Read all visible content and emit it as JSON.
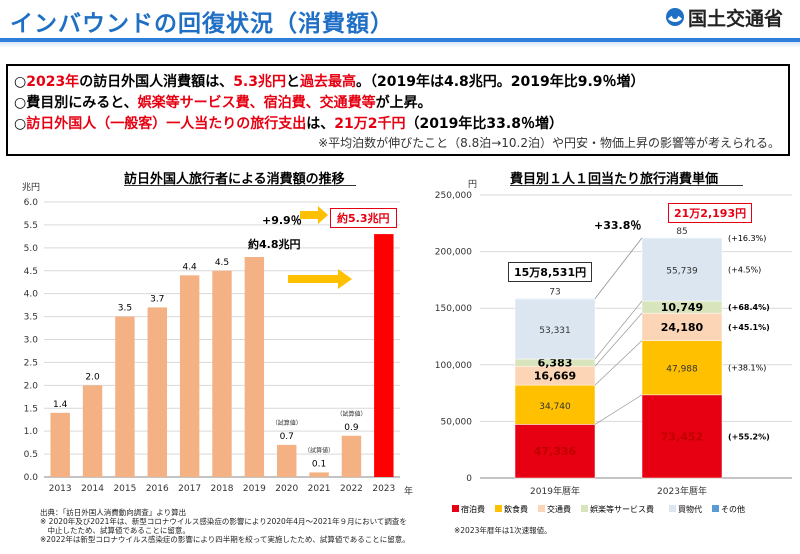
{
  "header": {
    "title": "インバウンドの回復状況（消費額）",
    "logo_text": "国土交通省"
  },
  "summary": {
    "line1": {
      "p1": "○",
      "p2": "2023年",
      "p3": "の",
      "p4": "訪日外国人消費額",
      "p5": "は、",
      "p6": "5.3兆円",
      "p7": "と",
      "p8": "過去最高",
      "p9": "。（2019年は4.8兆円。2019年比9.9％増）"
    },
    "line2": {
      "p1": "○費目別にみると、",
      "p2": "娯楽等サービス費、宿泊費、交通費等",
      "p3": "が上昇。"
    },
    "line3": {
      "p1": "○",
      "p2": "訪日外国人（一般客）一人当たりの旅行支出",
      "p3": "は、",
      "p4": "21万2千円",
      "p5": "（2019年比33.8％増）"
    },
    "line4": "※平均泊数が伸びたこと（8.8泊→10.2泊）や円安・物価上昇の影響等が考えられる。"
  },
  "left_chart": {
    "title": "訪日外国人旅行者による消費額の推移",
    "unit": "兆円",
    "xunit": "年",
    "growth_label": "+9.9％",
    "callout_2023": "約5.3兆円",
    "callout_2019": "約4.8兆円",
    "tentative": "（試算値）"
  },
  "right_chart": {
    "title": "費目別１人１回当たり旅行消費単価",
    "unit": "円",
    "growth_label": "+33.8％",
    "total_2019": "15万8,531円",
    "total_2023": "21万2,193円"
  },
  "footnotes_left": [
    "出典：「訪日外国人消費動向調査」より算出",
    "※ 2020年及び2021年は、新型コロナウイルス感染症の影響により2020年4月〜2021年９月において調査を",
    "　中止したため、試算値であることに留意。",
    "※2022年は新型コロナウイルス感染症の影響により四半期を絞って実施したため、試算値であることに留意。"
  ],
  "footnote_right": "※2023年暦年は1次速報値。",
  "chart_data": [
    {
      "type": "bar",
      "title": "訪日外国人旅行者による消費額の推移",
      "ylabel": "兆円",
      "xlabel": "年",
      "categories": [
        "2013",
        "2014",
        "2015",
        "2016",
        "2017",
        "2018",
        "2019",
        "2020",
        "2021",
        "2022",
        "2023"
      ],
      "values": [
        1.4,
        2.0,
        3.5,
        3.7,
        4.4,
        4.5,
        4.8,
        0.7,
        0.1,
        0.9,
        5.3
      ],
      "value_labels": [
        "1.4",
        "2.0",
        "3.5",
        "3.7",
        "4.4",
        "4.5",
        "",
        "0.7",
        "0.1",
        "0.9",
        ""
      ],
      "tentative": [
        false,
        false,
        false,
        false,
        false,
        false,
        false,
        true,
        true,
        true,
        false
      ],
      "ylim": [
        0,
        6.0
      ],
      "yticks": [
        "0.0",
        "0.5",
        "1.0",
        "1.5",
        "2.0",
        "2.5",
        "3.0",
        "3.5",
        "4.0",
        "4.5",
        "5.0",
        "5.5",
        "6.0"
      ],
      "colors": {
        "normal": "#f4b183",
        "highlight": "#ff0000"
      },
      "grid": true
    },
    {
      "type": "bar",
      "stacked": true,
      "title": "費目別１人１回当たり旅行消費単価",
      "ylabel": "円",
      "categories": [
        "2019年暦年",
        "2023年暦年"
      ],
      "ylim": [
        0,
        250000
      ],
      "yticks": [
        "0",
        "50,000",
        "100,000",
        "150,000",
        "200,000",
        "250,000"
      ],
      "series": [
        {
          "name": "宿泊費",
          "values": [
            47336,
            73452
          ],
          "labels": [
            "47,336",
            "73,452"
          ],
          "color": "#e60012",
          "change": "(+55.2%)"
        },
        {
          "name": "飲食費",
          "values": [
            34740,
            47988
          ],
          "labels": [
            "34,740",
            "47,988"
          ],
          "color": "#ffc000",
          "change": "(+38.1%)"
        },
        {
          "name": "交通費",
          "values": [
            16669,
            24180
          ],
          "labels": [
            "16,669",
            "24,180"
          ],
          "color": "#fbd5b5",
          "change": "(+45.1%)"
        },
        {
          "name": "娯楽等サービス費",
          "values": [
            6383,
            10749
          ],
          "labels": [
            "6,383",
            "10,749"
          ],
          "color": "#d8e4bc",
          "change": "(+68.4%)"
        },
        {
          "name": "買物代",
          "values": [
            53331,
            55739
          ],
          "labels": [
            "53,331",
            "55,739"
          ],
          "color": "#dce6f1",
          "change": "(+4.5%)"
        },
        {
          "name": "その他",
          "values": [
            73,
            85
          ],
          "labels": [
            "73",
            "85"
          ],
          "color": "#5b9bd5",
          "change": "(+16.3%)"
        }
      ],
      "grid": true
    }
  ]
}
